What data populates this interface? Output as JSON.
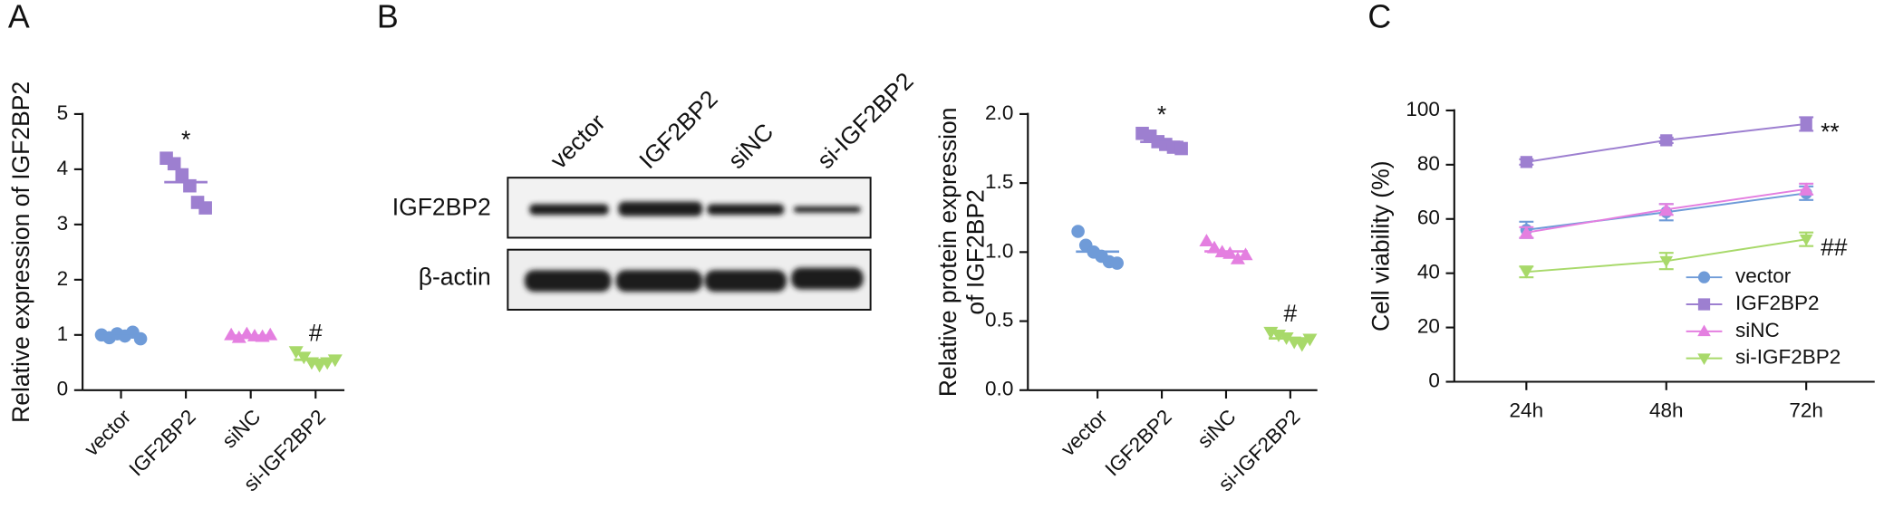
{
  "chart_data": [
    {
      "type": "strip",
      "panel": "A",
      "ylabel": "Relative expression of IGF2BP2",
      "categories": [
        "vector",
        "IGF2BP2",
        "siNC",
        "si-IGF2BP2"
      ],
      "values": [
        [
          1.0,
          0.95,
          1.02,
          0.98,
          1.05,
          0.93
        ],
        [
          4.2,
          4.1,
          3.9,
          3.7,
          3.4,
          3.3
        ],
        [
          1.0,
          0.95,
          1.02,
          0.98,
          0.97,
          1.0
        ],
        [
          0.7,
          0.6,
          0.5,
          0.45,
          0.5,
          0.55
        ]
      ],
      "colors": [
        "#6f9bd8",
        "#9d7fd0",
        "#e47fe0",
        "#a8d96a"
      ],
      "markers": [
        "circle",
        "square",
        "triangle",
        "triangle-down"
      ],
      "annotations": [
        null,
        "*",
        null,
        "#"
      ],
      "ylim": [
        0,
        5
      ],
      "yticks": [
        0,
        1,
        2,
        3,
        4,
        5
      ]
    },
    {
      "type": "strip",
      "panel": "",
      "ylabel": [
        "Relative protein expression",
        "of IGF2BP2"
      ],
      "categories": [
        "vector",
        "IGF2BP2",
        "siNC",
        "si-IGF2BP2"
      ],
      "values": [
        [
          1.15,
          1.05,
          1.0,
          0.97,
          0.93,
          0.92
        ],
        [
          1.86,
          1.84,
          1.8,
          1.78,
          1.76,
          1.75
        ],
        [
          1.08,
          1.03,
          1.0,
          0.99,
          0.95,
          0.98
        ],
        [
          0.42,
          0.4,
          0.38,
          0.35,
          0.33,
          0.37
        ]
      ],
      "colors": [
        "#6f9bd8",
        "#9d7fd0",
        "#e47fe0",
        "#a8d96a"
      ],
      "markers": [
        "circle",
        "square",
        "triangle",
        "triangle-down"
      ],
      "annotations": [
        null,
        "*",
        null,
        "#"
      ],
      "ylim": [
        0,
        2
      ],
      "yticks": [
        {
          "value": 0,
          "label": "0.0"
        },
        {
          "value": 0.5,
          "label": "0.5"
        },
        {
          "value": 1,
          "label": "1.0"
        },
        {
          "value": 1.5,
          "label": "1.5"
        },
        {
          "value": 2,
          "label": "2.0"
        }
      ]
    },
    {
      "type": "line",
      "panel": "C",
      "ylabel": "Cell viability (%)",
      "categories": [
        "24h",
        "48h",
        "72h"
      ],
      "series": [
        {
          "name": "vector",
          "color": "#6f9bd8",
          "marker": "circle",
          "values": [
            56,
            62.5,
            69.5
          ],
          "errors": [
            3,
            3,
            2.5
          ]
        },
        {
          "name": "IGF2BP2",
          "color": "#9d7fd0",
          "marker": "square",
          "values": [
            81,
            89,
            95
          ],
          "errors": [
            1,
            1,
            2.5
          ],
          "annotation": "**"
        },
        {
          "name": "siNC",
          "color": "#e47fe0",
          "marker": "triangle",
          "values": [
            55,
            63.5,
            71
          ],
          "errors": [
            2,
            2,
            2
          ]
        },
        {
          "name": "si-IGF2BP2",
          "color": "#a8d96a",
          "marker": "triangle-down",
          "values": [
            40.5,
            44.5,
            52.5
          ],
          "errors": [
            2,
            3,
            2.5
          ],
          "annotation": "##"
        }
      ],
      "ylim": [
        0,
        100
      ],
      "yticks": [
        0,
        20,
        40,
        60,
        80,
        100
      ],
      "legend": "lower right"
    }
  ],
  "blot": {
    "panel": "B",
    "lanes": [
      "vector",
      "IGF2BP2",
      "siNC",
      "si-IGF2BP2"
    ],
    "rows": [
      "IGF2BP2",
      "β-actin"
    ]
  }
}
